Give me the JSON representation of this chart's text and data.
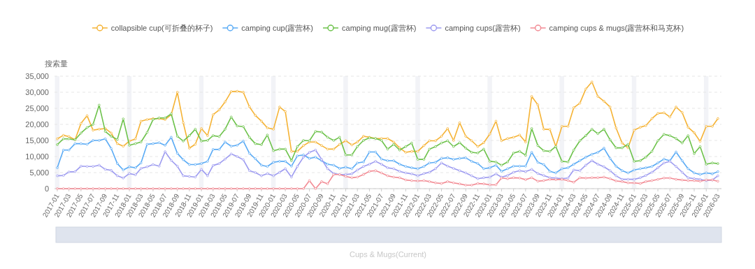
{
  "chart_data": {
    "type": "line",
    "ylabel": "搜索量",
    "legend": "top",
    "grid": "y",
    "marker": "circle",
    "line_style": "solid",
    "ylim": [
      0,
      35000
    ],
    "yticks": [
      0,
      {
        "value": 5000,
        "label": "5,000"
      },
      {
        "value": 10000,
        "label": "10,000"
      },
      {
        "value": 15000,
        "label": "15,000"
      },
      {
        "value": 20000,
        "label": "20,000"
      },
      {
        "value": 25000,
        "label": "25,000"
      },
      {
        "value": 30000,
        "label": "30,000"
      },
      {
        "value": 35000,
        "label": "35,000"
      }
    ],
    "xlim": [
      "2016-12-18",
      "2026-03-19"
    ],
    "xticks": [
      "2017-01",
      "2017-03",
      "2017-05",
      "2017-07",
      "2017-09",
      "2017-11",
      "2018-01",
      "2018-03",
      "2018-05",
      "2018-07",
      "2018-09",
      "2018-11",
      "2019-01",
      "2019-03",
      "2019-05",
      "2019-07",
      "2019-09",
      "2019-11",
      "2020-01",
      "2020-03",
      "2020-05",
      "2020-07",
      "2020-09",
      "2020-11",
      "2021-01",
      "2021-03",
      "2021-05",
      "2021-07",
      "2021-09",
      "2021-11",
      "2022-01",
      "2022-03",
      "2022-05",
      "2022-07",
      "2022-09",
      "2022-11",
      "2023-01",
      "2023-03",
      "2023-05",
      "2023-07",
      "2023-09",
      "2023-11",
      "2024-01",
      "2024-03",
      "2024-05",
      "2024-07",
      "2024-09",
      "2024-11",
      "2025-01",
      "2025-03",
      "2025-05",
      "2025-07",
      "2025-09",
      "2025-11",
      "2026-01",
      "2026-03"
    ],
    "x": [
      "2017-01",
      "2017-02",
      "2017-03",
      "2017-04",
      "2017-05",
      "2017-06",
      "2017-07",
      "2017-08",
      "2017-09",
      "2017-10",
      "2017-11",
      "2017-12",
      "2018-01",
      "2018-02",
      "2018-03",
      "2018-04",
      "2018-05",
      "2018-06",
      "2018-07",
      "2018-08",
      "2018-09",
      "2018-10",
      "2018-11",
      "2018-12",
      "2019-01",
      "2019-02",
      "2019-03",
      "2019-04",
      "2019-05",
      "2019-06",
      "2019-07",
      "2019-08",
      "2019-09",
      "2019-10",
      "2019-11",
      "2019-12",
      "2020-01",
      "2020-02",
      "2020-03",
      "2020-04",
      "2020-05",
      "2020-06",
      "2020-07",
      "2020-08",
      "2020-09",
      "2020-10",
      "2020-11",
      "2020-12",
      "2021-01",
      "2021-02",
      "2021-03",
      "2021-04",
      "2021-05",
      "2021-06",
      "2021-07",
      "2021-08",
      "2021-09",
      "2021-10",
      "2021-11",
      "2021-12",
      "2022-01",
      "2022-02",
      "2022-03",
      "2022-04",
      "2022-05",
      "2022-06",
      "2022-07",
      "2022-08",
      "2022-09",
      "2022-10",
      "2022-11",
      "2022-12",
      "2023-01",
      "2023-02",
      "2023-03",
      "2023-04",
      "2023-05",
      "2023-06",
      "2023-07",
      "2023-08",
      "2023-09",
      "2023-10",
      "2023-11",
      "2023-12",
      "2024-01",
      "2024-02",
      "2024-03",
      "2024-04",
      "2024-05",
      "2024-06",
      "2024-07",
      "2024-08",
      "2024-09",
      "2024-10",
      "2024-11",
      "2024-12",
      "2025-01",
      "2025-02",
      "2025-03",
      "2025-04",
      "2025-05",
      "2025-06",
      "2025-07",
      "2025-08",
      "2025-09",
      "2025-10",
      "2025-11",
      "2025-12",
      "2026-01",
      "2026-02",
      "2026-03"
    ],
    "bands": [
      {
        "axis": "x",
        "from": "2016-12-20",
        "to": "2017-01-12",
        "color": "#f2f3f7"
      },
      {
        "axis": "x",
        "from": "2017-12-20",
        "to": "2018-01-12",
        "color": "#f2f3f7"
      },
      {
        "axis": "x",
        "from": "2018-12-20",
        "to": "2019-01-12",
        "color": "#f2f3f7"
      },
      {
        "axis": "x",
        "from": "2019-12-20",
        "to": "2020-01-12",
        "color": "#f2f3f7"
      },
      {
        "axis": "x",
        "from": "2020-12-20",
        "to": "2021-01-12",
        "color": "#f2f3f7"
      },
      {
        "axis": "x",
        "from": "2021-12-20",
        "to": "2022-01-12",
        "color": "#f2f3f7"
      },
      {
        "axis": "x",
        "from": "2022-12-20",
        "to": "2023-01-12",
        "color": "#f2f3f7"
      },
      {
        "axis": "x",
        "from": "2023-12-20",
        "to": "2024-01-12",
        "color": "#f2f3f7"
      },
      {
        "axis": "x",
        "from": "2024-12-20",
        "to": "2025-01-12",
        "color": "#f2f3f7"
      },
      {
        "axis": "x",
        "from": "2025-12-20",
        "to": "2026-01-12",
        "color": "#f2f3f7"
      }
    ],
    "annotations": [
      "Cups & Mugs(Current)"
    ],
    "series": [
      {
        "name": "collapsible cup(可折叠的杯子)",
        "color": "#f5b335",
        "values": [
          15500,
          16600,
          16200,
          15200,
          20300,
          22700,
          18200,
          18500,
          18700,
          17300,
          14000,
          13200,
          14800,
          15500,
          21000,
          21500,
          21800,
          21800,
          21500,
          23000,
          30000,
          20500,
          12600,
          13800,
          18700,
          16500,
          23000,
          24500,
          27000,
          30200,
          30300,
          30000,
          25500,
          22800,
          21000,
          18900,
          18500,
          25400,
          24000,
          11600,
          11600,
          13400,
          14500,
          14500,
          13400,
          12300,
          12300,
          13800,
          14900,
          13600,
          14500,
          16300,
          16000,
          15600,
          15600,
          15600,
          14500,
          12700,
          11300,
          11600,
          11600,
          13400,
          14900,
          14900,
          16300,
          18700,
          15000,
          20500,
          16300,
          14900,
          13100,
          14300,
          17000,
          21000,
          14900,
          15600,
          16000,
          16700,
          14500,
          28700,
          26100,
          18500,
          18400,
          13100,
          19400,
          19400,
          25200,
          26600,
          31000,
          33200,
          28700,
          27200,
          25400,
          18900,
          14200,
          12700,
          18200,
          19100,
          19600,
          21800,
          23400,
          23600,
          22300,
          25400,
          23700,
          19100,
          17400,
          14700,
          19400,
          19400,
          21800
        ]
      },
      {
        "name": "camping cup(露营杯)",
        "color": "#5aabf5",
        "values": [
          6500,
          12000,
          12000,
          14000,
          14000,
          13800,
          15000,
          15000,
          15500,
          12500,
          7800,
          5800,
          6800,
          6500,
          8000,
          13800,
          14000,
          14300,
          13500,
          16000,
          11000,
          9000,
          7500,
          7500,
          7800,
          8500,
          12200,
          12200,
          14500,
          13200,
          13500,
          14800,
          11000,
          9300,
          7300,
          6900,
          8200,
          8500,
          8500,
          7000,
          10200,
          10500,
          9400,
          9800,
          8700,
          7600,
          7300,
          6300,
          6700,
          6200,
          8000,
          8300,
          11400,
          11400,
          9200,
          8700,
          8700,
          7600,
          6900,
          6500,
          6200,
          6900,
          8000,
          8200,
          9400,
          9600,
          9100,
          9400,
          9600,
          8500,
          7800,
          6200,
          6500,
          7300,
          5400,
          6200,
          7000,
          7000,
          7000,
          11300,
          8200,
          7500,
          5400,
          4900,
          6200,
          6500,
          7600,
          8700,
          9800,
          10700,
          11300,
          12600,
          9400,
          7000,
          5600,
          4900,
          5800,
          6200,
          6500,
          6900,
          8000,
          9200,
          8700,
          11400,
          8700,
          6200,
          4900,
          4400,
          4900,
          4600,
          5300
        ]
      },
      {
        "name": "camping mug(露营杯)",
        "color": "#6cc24a",
        "values": [
          13700,
          15500,
          15500,
          15200,
          17300,
          19000,
          20000,
          26000,
          17800,
          16300,
          15300,
          21700,
          13500,
          14000,
          14500,
          17500,
          21500,
          22000,
          22000,
          23300,
          16300,
          14800,
          16500,
          18500,
          14800,
          15000,
          16500,
          16200,
          18500,
          22300,
          19500,
          19300,
          16000,
          14000,
          13700,
          16700,
          11800,
          12300,
          12300,
          8700,
          13100,
          15000,
          14900,
          17800,
          17600,
          16000,
          15000,
          16000,
          10500,
          10500,
          13100,
          15000,
          15800,
          15600,
          15000,
          12300,
          13800,
          12000,
          13100,
          14200,
          9100,
          9100,
          12300,
          13100,
          14200,
          14900,
          13100,
          14300,
          12600,
          11300,
          11100,
          12300,
          8500,
          8300,
          7300,
          8300,
          11100,
          11600,
          10400,
          18700,
          13400,
          11800,
          11600,
          13100,
          8500,
          8300,
          12000,
          14900,
          16500,
          18500,
          17100,
          18500,
          15200,
          12700,
          12700,
          13800,
          8500,
          8700,
          9800,
          11600,
          14900,
          16900,
          16500,
          15600,
          14200,
          16500,
          10900,
          13100,
          7600,
          8000,
          7800
        ]
      },
      {
        "name": "camping cups(露营杯)",
        "color": "#9d9bf0",
        "values": [
          4000,
          4100,
          5200,
          5300,
          7000,
          6900,
          6900,
          7300,
          6000,
          5700,
          4000,
          3300,
          4700,
          4300,
          6300,
          6800,
          7500,
          7000,
          11500,
          8800,
          7000,
          4000,
          3800,
          3600,
          6000,
          4000,
          7200,
          7800,
          9200,
          10800,
          10000,
          9000,
          5600,
          5000,
          4000,
          4700,
          4000,
          5100,
          6200,
          3600,
          6900,
          9800,
          11300,
          12000,
          9100,
          6200,
          4700,
          4400,
          4400,
          4600,
          5800,
          6900,
          7600,
          8500,
          7600,
          6500,
          6200,
          5400,
          4900,
          4600,
          4000,
          4700,
          5100,
          6200,
          8000,
          7000,
          6300,
          5600,
          4900,
          4000,
          3100,
          3400,
          3600,
          4600,
          3600,
          4100,
          5100,
          5600,
          5300,
          6000,
          4700,
          4100,
          3400,
          3300,
          3100,
          3300,
          5800,
          5600,
          7300,
          8700,
          7600,
          6800,
          5600,
          4000,
          2900,
          2900,
          2900,
          3400,
          4100,
          5100,
          6500,
          8000,
          8500,
          6900,
          5100,
          3400,
          3100,
          2900,
          2500,
          2700,
          4000
        ]
      },
      {
        "name": "camping cups & mugs(露营杯和马克杯)",
        "color": "#f28b94",
        "values": [
          0,
          0,
          0,
          0,
          0,
          0,
          0,
          0,
          0,
          0,
          0,
          0,
          0,
          0,
          0,
          0,
          0,
          0,
          0,
          0,
          0,
          0,
          0,
          0,
          0,
          0,
          0,
          0,
          0,
          0,
          0,
          0,
          0,
          0,
          0,
          0,
          0,
          0,
          0,
          0,
          0,
          0,
          2500,
          0,
          2200,
          1500,
          4400,
          4400,
          3800,
          3400,
          3600,
          4400,
          5400,
          5600,
          4900,
          4000,
          3600,
          3400,
          2700,
          2500,
          2400,
          2500,
          2200,
          1800,
          1600,
          2200,
          1800,
          1500,
          1100,
          1100,
          1600,
          1500,
          1200,
          1200,
          3300,
          3100,
          3400,
          3300,
          2800,
          3400,
          2300,
          2500,
          2900,
          2800,
          2900,
          2500,
          2000,
          3400,
          3300,
          3400,
          3400,
          3600,
          3100,
          2400,
          2200,
          1800,
          1800,
          1600,
          2200,
          2500,
          2900,
          3300,
          3300,
          2900,
          2700,
          2500,
          2500,
          2300,
          2700,
          2700,
          2300
        ]
      }
    ]
  }
}
